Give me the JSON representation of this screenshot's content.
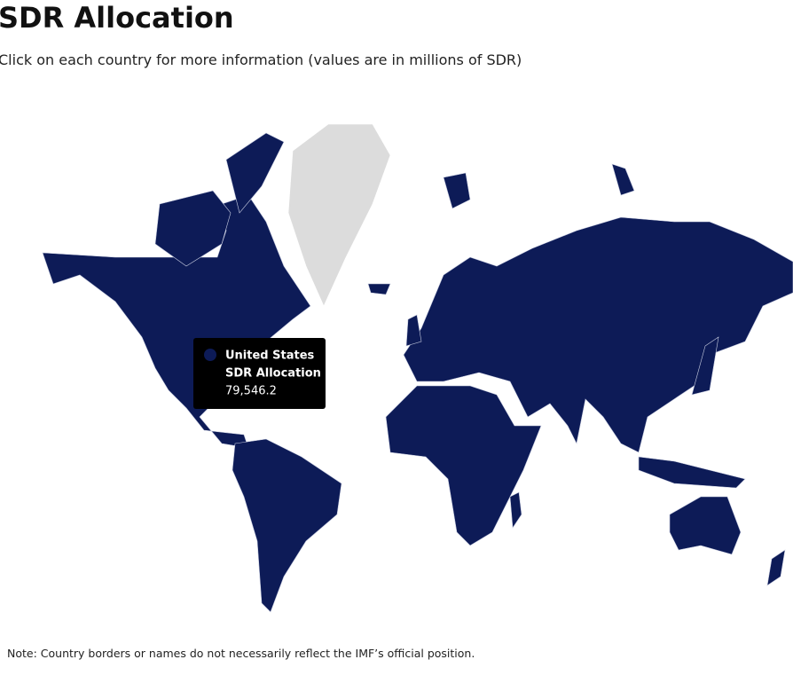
{
  "header": {
    "title": "SDR Allocation",
    "subtitle": "Click on each country for more information (values are in millions of SDR)"
  },
  "tooltip": {
    "country": "United States",
    "label": "SDR Allocation",
    "value": "79,546.2"
  },
  "note": "Note: Country borders or names do not necessarily reflect the IMF’s official position."
}
